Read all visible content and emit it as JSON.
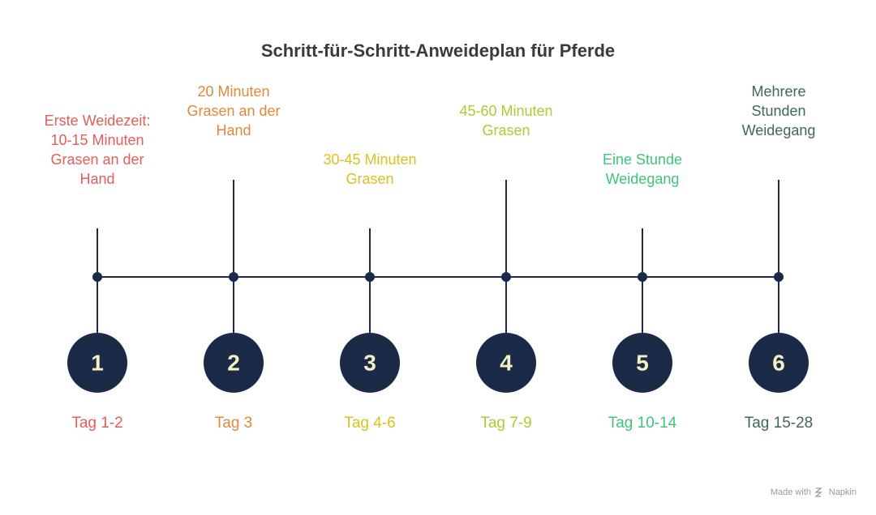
{
  "title": "Schritt-für-Schritt-Anweideplan für Pferde",
  "steps": [
    {
      "number": "1",
      "description": [
        "Erste Weidezeit:",
        "10-15 Minuten",
        "Grasen an der",
        "Hand"
      ],
      "day": "Tag 1-2",
      "color": "#e35d5b"
    },
    {
      "number": "2",
      "description": [
        "20 Minuten",
        "Grasen an der",
        "Hand"
      ],
      "day": "Tag 3",
      "color": "#e0893a"
    },
    {
      "number": "3",
      "description": [
        "30-45 Minuten",
        "Grasen"
      ],
      "day": "Tag 4-6",
      "color": "#d9c21f"
    },
    {
      "number": "4",
      "description": [
        "45-60 Minuten",
        "Grasen"
      ],
      "day": "Tag 7-9",
      "color": "#a6cf33"
    },
    {
      "number": "5",
      "description": [
        "Eine Stunde",
        "Weidegang"
      ],
      "day": "Tag 10-14",
      "color": "#3fc47a"
    },
    {
      "number": "6",
      "description": [
        "Mehrere",
        "Stunden",
        "Weidegang"
      ],
      "day": "Tag 15-28",
      "color": "#3e6a52"
    }
  ],
  "footer": {
    "made_with": "Made with",
    "brand": "Napkin"
  }
}
